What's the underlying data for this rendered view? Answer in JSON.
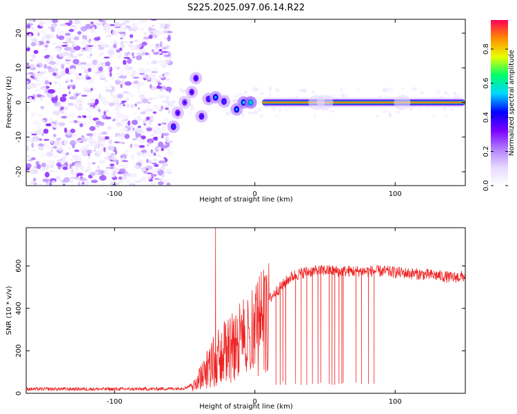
{
  "title": "S225.2025.097.06.14.R22",
  "chart_data": [
    {
      "type": "heatmap",
      "title": "S225.2025.097.06.14.R22",
      "xlabel": "Height of straight line (km)",
      "ylabel": "Frequency (Hz)",
      "xlim": [
        -163,
        150
      ],
      "ylim": [
        -24,
        24
      ],
      "x_ticks": [
        -100,
        0,
        100
      ],
      "y_ticks": [
        -20,
        -10,
        0,
        10,
        20
      ],
      "colorbar": {
        "label": "Normalized spectral amplitude",
        "range": [
          0,
          0.97
        ],
        "ticks": [
          0.0,
          0.2,
          0.4,
          0.6,
          0.8
        ],
        "colors": [
          "#ffffff",
          "#e6d9ff",
          "#b07cff",
          "#7a00ff",
          "#0000ff",
          "#00d7ff",
          "#00ff6a",
          "#e8ff00",
          "#ff8c00",
          "#ff0055"
        ]
      },
      "features": {
        "noise_region_x": [
          -163,
          -60
        ],
        "tone_start_x": 5,
        "tone_end_x": 150,
        "tone_frequency": 0.0,
        "tone_amplitude": 0.88
      },
      "tracks": [
        {
          "x": -58,
          "y": -7,
          "amp": 0.35
        },
        {
          "x": -55,
          "y": -3,
          "amp": 0.3
        },
        {
          "x": -50,
          "y": 0,
          "amp": 0.28
        },
        {
          "x": -45,
          "y": 3,
          "amp": 0.3
        },
        {
          "x": -42,
          "y": 7,
          "amp": 0.32
        },
        {
          "x": -38,
          "y": -4,
          "amp": 0.33
        },
        {
          "x": -33,
          "y": 1,
          "amp": 0.34
        },
        {
          "x": -28,
          "y": 1.5,
          "amp": 0.4
        },
        {
          "x": -22,
          "y": 0.3,
          "amp": 0.35
        },
        {
          "x": -13,
          "y": -2,
          "amp": 0.4
        },
        {
          "x": -8,
          "y": 0,
          "amp": 0.45
        },
        {
          "x": -3,
          "y": 0,
          "amp": 0.5
        }
      ]
    },
    {
      "type": "line",
      "xlabel": "Height of straight line (km)",
      "ylabel": "SNR (10 * v/v)",
      "xlim": [
        -163,
        150
      ],
      "ylim": [
        0,
        780
      ],
      "x_ticks": [
        -100,
        0,
        100
      ],
      "y_ticks": [
        0,
        200,
        400,
        600
      ],
      "color": "#ee2222",
      "envelope": {
        "x": [
          -163,
          -80,
          -60,
          -50,
          -45,
          -40,
          -35,
          -30,
          -25,
          -20,
          -15,
          -10,
          -5,
          0,
          5,
          10,
          15,
          20,
          25,
          30,
          35,
          40,
          45,
          50,
          60,
          70,
          80,
          90,
          100,
          110,
          120,
          130,
          140,
          150
        ],
        "y": [
          20,
          20,
          22,
          25,
          40,
          80,
          130,
          180,
          230,
          260,
          290,
          300,
          330,
          370,
          400,
          440,
          480,
          510,
          545,
          560,
          570,
          575,
          575,
          580,
          575,
          575,
          575,
          575,
          570,
          565,
          560,
          555,
          545,
          550
        ]
      },
      "spike": {
        "x": -28,
        "y": 780
      },
      "dropouts": [
        {
          "x": 15,
          "y": 40
        },
        {
          "x": 18,
          "y": 40
        },
        {
          "x": 20,
          "y": 55
        },
        {
          "x": 22,
          "y": 40
        },
        {
          "x": 29,
          "y": 45
        },
        {
          "x": 33,
          "y": 40
        },
        {
          "x": 37,
          "y": 40
        },
        {
          "x": 41,
          "y": 45
        },
        {
          "x": 45,
          "y": 45
        },
        {
          "x": 47,
          "y": 50
        },
        {
          "x": 53,
          "y": 45
        },
        {
          "x": 55,
          "y": 40
        },
        {
          "x": 57,
          "y": 40
        },
        {
          "x": 60,
          "y": 45
        },
        {
          "x": 62,
          "y": 45
        },
        {
          "x": 63,
          "y": 50
        },
        {
          "x": 72,
          "y": 50
        },
        {
          "x": 76,
          "y": 45
        },
        {
          "x": 81,
          "y": 45
        },
        {
          "x": 85,
          "y": 45
        }
      ]
    }
  ]
}
